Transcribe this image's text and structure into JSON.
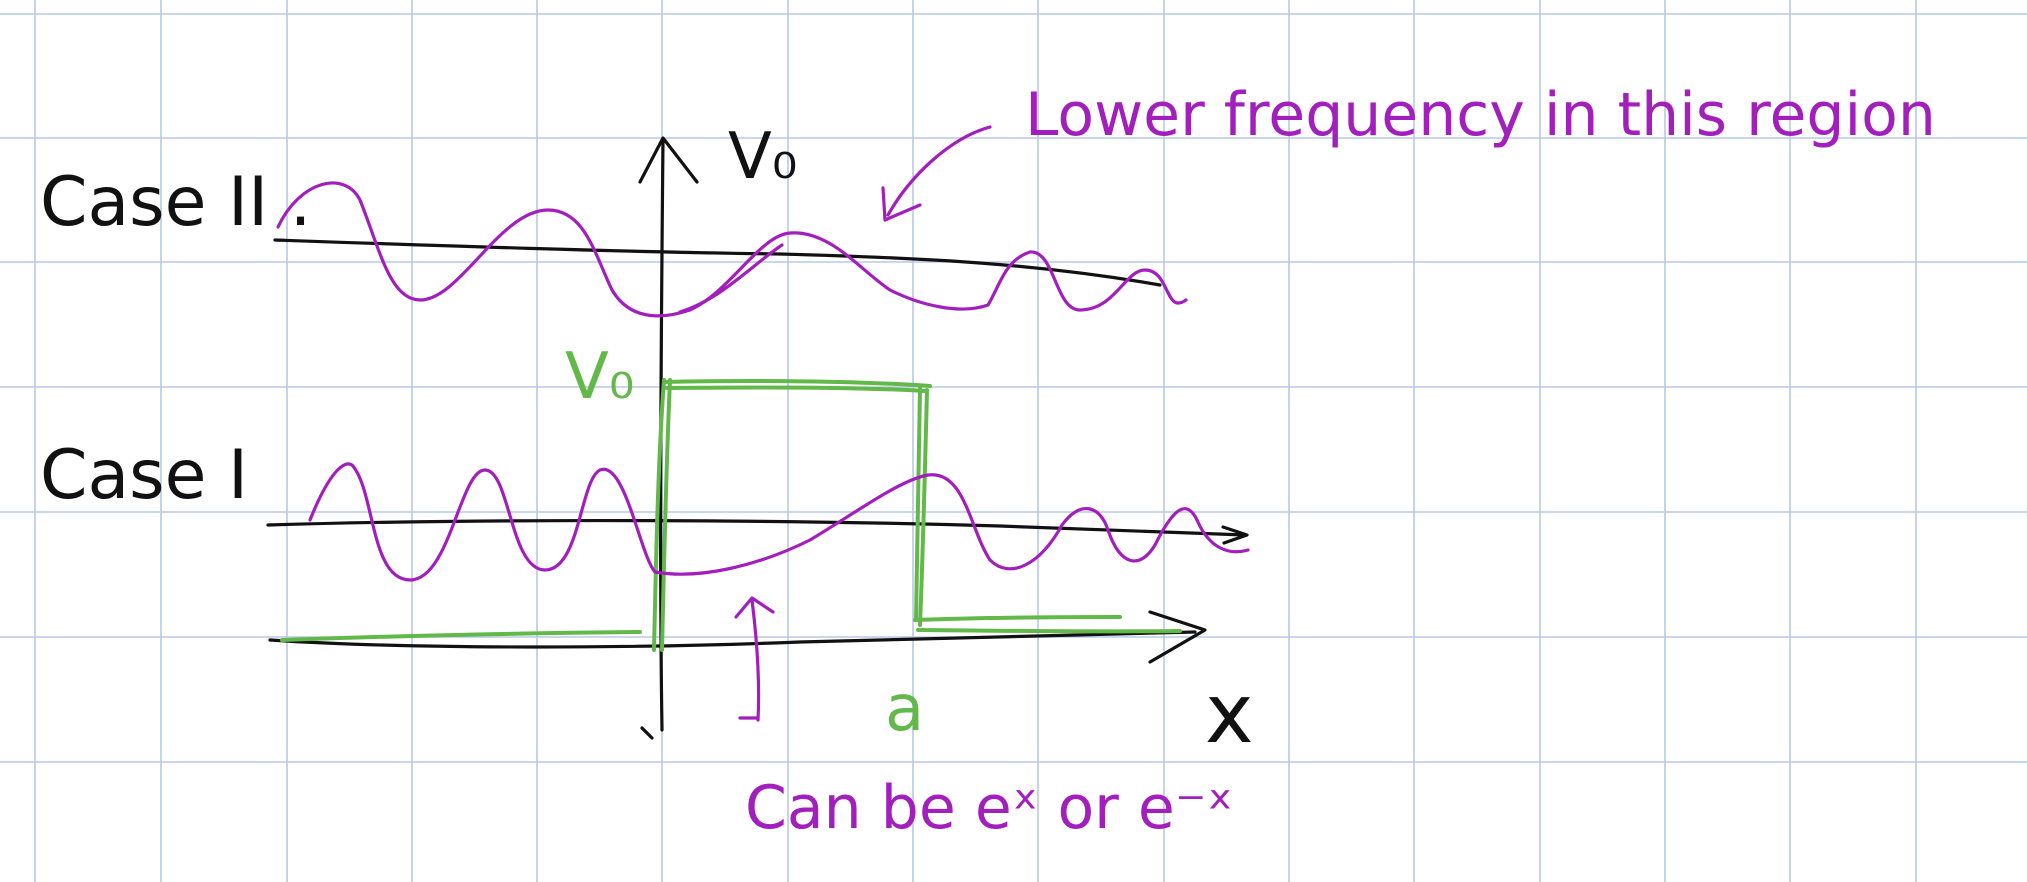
{
  "colors": {
    "grid": "#b9c8e6",
    "black_ink": "#111111",
    "purple_ink": "#a21ebd",
    "green_ink": "#63b84a",
    "background": "#ffffff"
  },
  "labels": {
    "case_two": "Case II .",
    "case_one": "Case I",
    "potential_top": "V₀",
    "potential_barrier": "V₀",
    "x_axis": "x",
    "barrier_edge": "a",
    "annotation_top": "Lower frequency in this region",
    "annotation_bottom": "Can be eˣ or e⁻ˣ"
  }
}
